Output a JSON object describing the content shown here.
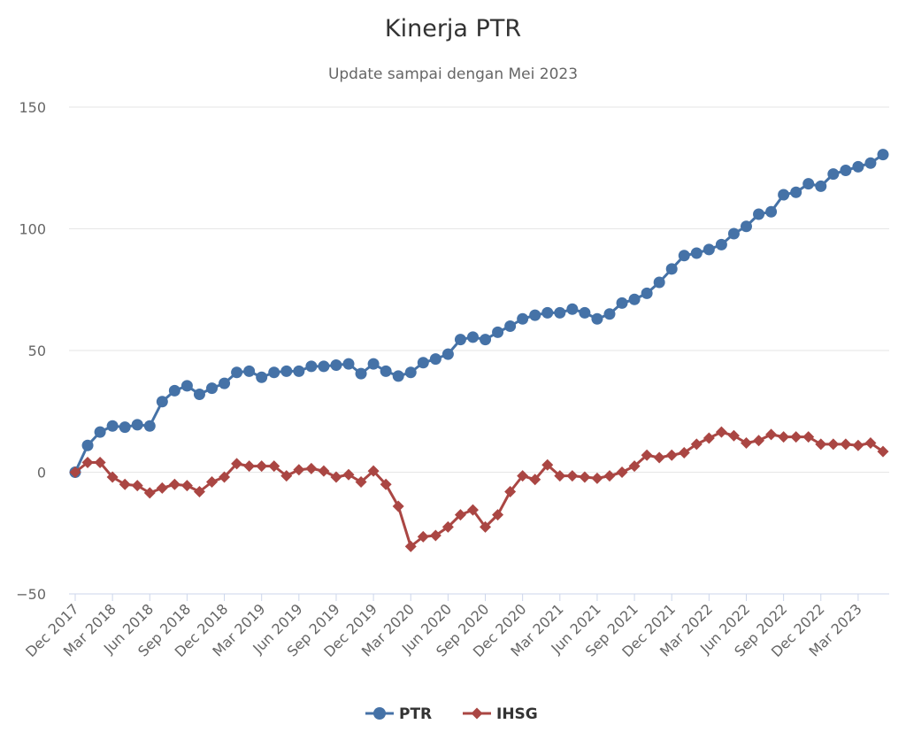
{
  "chart_data": {
    "type": "line",
    "title": "Kinerja PTR",
    "subtitle": "Update sampai dengan Mei 2023",
    "xlabel": "",
    "ylabel": "",
    "ylim": [
      -50,
      150
    ],
    "yticks": [
      -50,
      0,
      50,
      100,
      150
    ],
    "grid": true,
    "legend_position": "bottom-center",
    "x": [
      "Dec 2017",
      "Jan 2018",
      "Feb 2018",
      "Mar 2018",
      "Apr 2018",
      "May 2018",
      "Jun 2018",
      "Jul 2018",
      "Aug 2018",
      "Sep 2018",
      "Oct 2018",
      "Nov 2018",
      "Dec 2018",
      "Jan 2019",
      "Feb 2019",
      "Mar 2019",
      "Apr 2019",
      "May 2019",
      "Jun 2019",
      "Jul 2019",
      "Aug 2019",
      "Sep 2019",
      "Oct 2019",
      "Nov 2019",
      "Dec 2019",
      "Jan 2020",
      "Feb 2020",
      "Mar 2020",
      "Apr 2020",
      "May 2020",
      "Jun 2020",
      "Jul 2020",
      "Aug 2020",
      "Sep 2020",
      "Oct 2020",
      "Nov 2020",
      "Dec 2020",
      "Jan 2021",
      "Feb 2021",
      "Mar 2021",
      "Apr 2021",
      "May 2021",
      "Jun 2021",
      "Jul 2021",
      "Aug 2021",
      "Sep 2021",
      "Oct 2021",
      "Nov 2021",
      "Dec 2021",
      "Jan 2022",
      "Feb 2022",
      "Mar 2022",
      "Apr 2022",
      "May 2022",
      "Jun 2022",
      "Jul 2022",
      "Aug 2022",
      "Sep 2022",
      "Oct 2022",
      "Nov 2022",
      "Dec 2022",
      "Jan 2023",
      "Feb 2023",
      "Mar 2023",
      "Apr 2023",
      "May 2023"
    ],
    "xtick_labels": [
      "Dec 2017",
      "Mar 2018",
      "Jun 2018",
      "Sep 2018",
      "Dec 2018",
      "Mar 2019",
      "Jun 2019",
      "Sep 2019",
      "Dec 2019",
      "Mar 2020",
      "Jun 2020",
      "Sep 2020",
      "Dec 2020",
      "Mar 2021",
      "Jun 2021",
      "Sep 2021",
      "Dec 2021",
      "Mar 2022",
      "Jun 2022",
      "Sep 2022",
      "Dec 2022",
      "Mar 2023"
    ],
    "series": [
      {
        "name": "PTR",
        "color": "#4572a7",
        "marker": "circle",
        "values": [
          0,
          11,
          16.5,
          19,
          18.5,
          19.5,
          19,
          29,
          33.5,
          35.5,
          32,
          34.5,
          36.5,
          41,
          41.5,
          39,
          41,
          41.5,
          41.5,
          43.5,
          43.5,
          44,
          44.5,
          40.5,
          44.5,
          41.5,
          39.5,
          41,
          45,
          46.5,
          48.5,
          54.5,
          55.5,
          54.5,
          57.5,
          60,
          63,
          64.5,
          65.5,
          65.5,
          67,
          65.5,
          63,
          65,
          69.5,
          71,
          73.5,
          78,
          83.5,
          89,
          90,
          91.5,
          93.5,
          98,
          101,
          106,
          107,
          114,
          115,
          118.5,
          117.5,
          122.5,
          124,
          125.5,
          127,
          130.5
        ]
      },
      {
        "name": "IHSG",
        "color": "#aa4643",
        "marker": "diamond",
        "values": [
          0,
          4,
          4,
          -2,
          -5,
          -5.5,
          -8.5,
          -6.5,
          -5,
          -5.5,
          -8,
          -4,
          -2,
          3.5,
          2.5,
          2.5,
          2.5,
          -1.5,
          1,
          1.5,
          0.5,
          -2,
          -1,
          -4,
          0.5,
          -5,
          -14,
          -30.5,
          -26.5,
          -26,
          -22.5,
          -17.5,
          -15.5,
          -22.5,
          -17.5,
          -8,
          -1.5,
          -3,
          3,
          -1.5,
          -1.5,
          -2,
          -2.5,
          -1.5,
          0,
          2.5,
          7,
          6,
          7,
          8,
          11.5,
          14,
          16.5,
          15,
          12,
          13,
          15.5,
          14.5,
          14.5,
          14.5,
          11.5,
          11.5,
          11.5,
          11,
          12,
          8.5
        ]
      }
    ]
  }
}
